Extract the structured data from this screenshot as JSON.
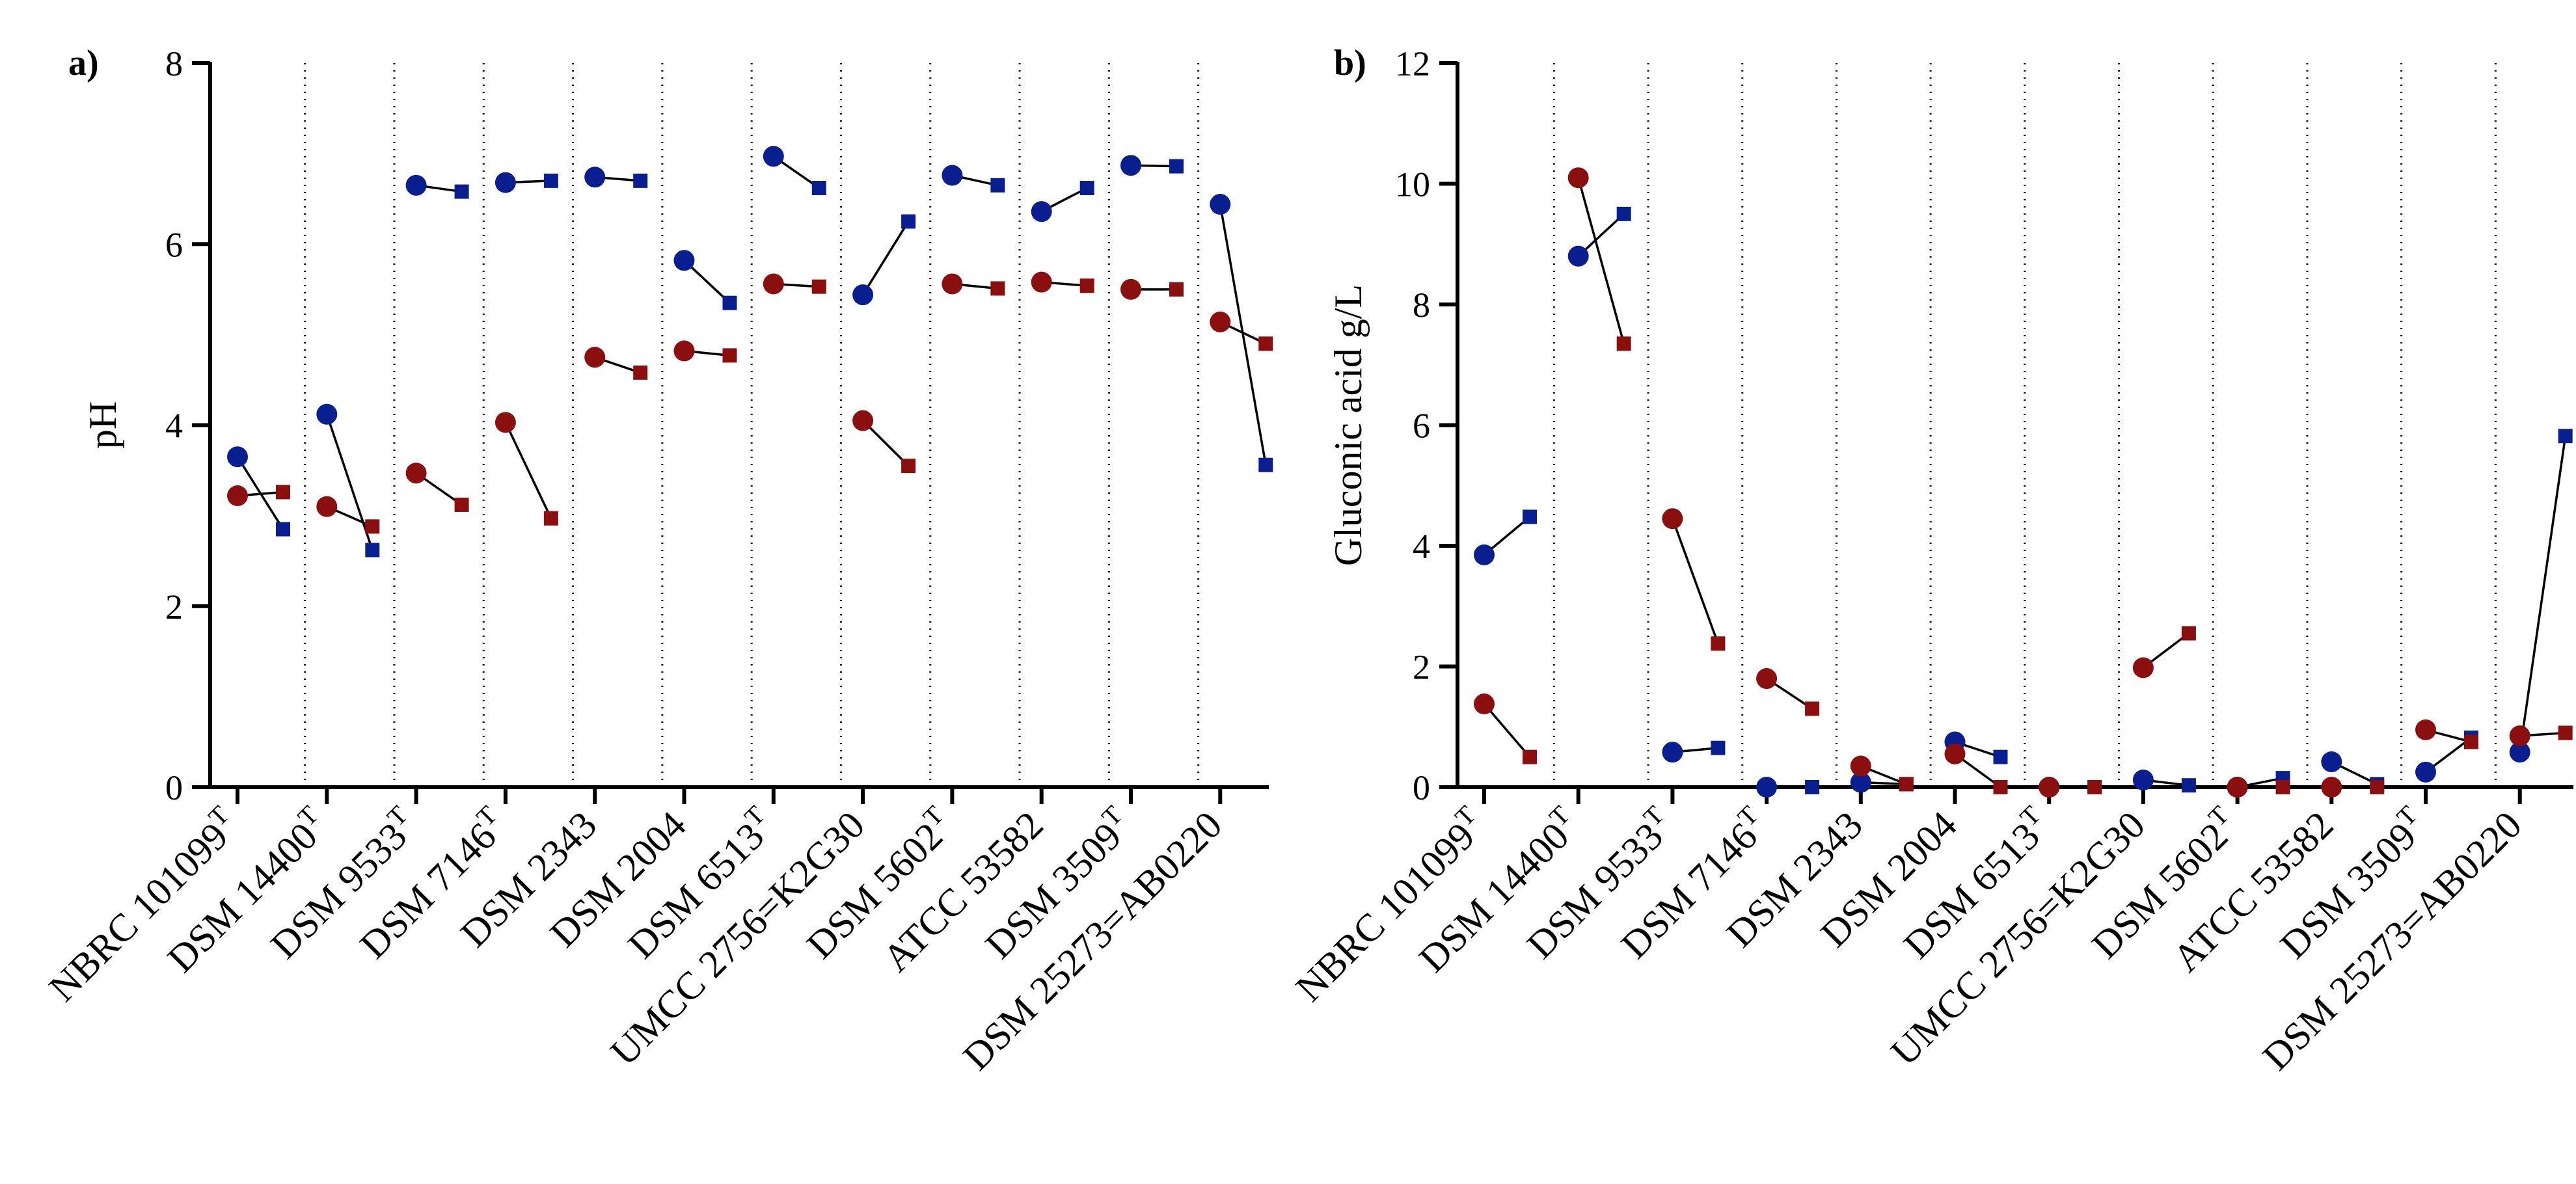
{
  "figure": {
    "panels": [
      {
        "label": "a)",
        "ylabel": "pH",
        "ylim": [
          0,
          8
        ],
        "yticks": [
          0,
          2,
          4,
          6,
          8
        ]
      },
      {
        "label": "b)",
        "ylabel": "Gluconic acid g/L",
        "ylim": [
          0,
          12
        ],
        "yticks": [
          0,
          2,
          4,
          6,
          8,
          10,
          12
        ]
      }
    ]
  },
  "chart_data": [
    {
      "type": "line",
      "title": "a)",
      "xlabel": "",
      "ylabel": "pH",
      "ylim": [
        0,
        8
      ],
      "grid": "vertical dotted separators between strains",
      "categories": [
        {
          "name": "NBRC 101099",
          "sup": "T"
        },
        {
          "name": "DSM 14400",
          "sup": "T"
        },
        {
          "name": "DSM 9533",
          "sup": "T"
        },
        {
          "name": "DSM 7146",
          "sup": "T"
        },
        {
          "name": "DSM 2343",
          "sup": ""
        },
        {
          "name": "DSM 2004",
          "sup": ""
        },
        {
          "name": "DSM 6513",
          "sup": "T"
        },
        {
          "name": "UMCC 2756=K2G30",
          "sup": ""
        },
        {
          "name": "DSM 5602",
          "sup": "T"
        },
        {
          "name": "ATCC 53582",
          "sup": ""
        },
        {
          "name": "DSM 3509",
          "sup": "T"
        },
        {
          "name": "DSM 25273=AB0220",
          "sup": ""
        }
      ],
      "series": [
        {
          "name": "blue",
          "color": "#0a1f8f",
          "start_marker": "circle",
          "end_marker": "square",
          "values": [
            [
              3.65,
              2.85
            ],
            [
              4.12,
              2.62
            ],
            [
              6.65,
              6.58
            ],
            [
              6.68,
              6.7
            ],
            [
              6.74,
              6.7
            ],
            [
              5.82,
              5.35
            ],
            [
              6.97,
              6.62
            ],
            [
              5.44,
              6.25
            ],
            [
              6.76,
              6.65
            ],
            [
              6.36,
              6.62
            ],
            [
              6.87,
              6.86
            ],
            [
              6.44,
              3.56
            ]
          ]
        },
        {
          "name": "red",
          "color": "#8b0f0f",
          "start_marker": "circle",
          "end_marker": "square",
          "values": [
            [
              3.22,
              3.26
            ],
            [
              3.1,
              2.88
            ],
            [
              3.47,
              3.12
            ],
            [
              4.03,
              2.97
            ],
            [
              4.75,
              4.58
            ],
            [
              4.82,
              4.77
            ],
            [
              5.56,
              5.53
            ],
            [
              4.05,
              3.55
            ],
            [
              5.56,
              5.51
            ],
            [
              5.58,
              5.54
            ],
            [
              5.5,
              5.5
            ],
            [
              5.14,
              4.9
            ]
          ]
        }
      ]
    },
    {
      "type": "line",
      "title": "b)",
      "xlabel": "",
      "ylabel": "Gluconic acid g/L",
      "ylim": [
        0,
        12
      ],
      "grid": "vertical dotted separators between strains",
      "categories": [
        {
          "name": "NBRC 101099",
          "sup": "T"
        },
        {
          "name": "DSM 14400",
          "sup": "T"
        },
        {
          "name": "DSM 9533",
          "sup": "T"
        },
        {
          "name": "DSM 7146",
          "sup": "T"
        },
        {
          "name": "DSM 2343",
          "sup": ""
        },
        {
          "name": "DSM 2004",
          "sup": ""
        },
        {
          "name": "DSM 6513",
          "sup": "T"
        },
        {
          "name": "UMCC 2756=K2G30",
          "sup": ""
        },
        {
          "name": "DSM 5602",
          "sup": "T"
        },
        {
          "name": "ATCC 53582",
          "sup": ""
        },
        {
          "name": "DSM 3509",
          "sup": "T"
        },
        {
          "name": "DSM 25273=AB0220",
          "sup": ""
        }
      ],
      "series": [
        {
          "name": "blue",
          "color": "#0a1f8f",
          "start_marker": "circle",
          "end_marker": "square",
          "values": [
            [
              3.85,
              4.48
            ],
            [
              8.8,
              9.5
            ],
            [
              0.58,
              0.65
            ],
            [
              0.0,
              0.0
            ],
            [
              0.08,
              0.05
            ],
            [
              0.75,
              0.5
            ],
            [
              0.0,
              0.0
            ],
            [
              0.12,
              0.03
            ],
            [
              0.0,
              0.15
            ],
            [
              0.42,
              0.05
            ],
            [
              0.25,
              0.82
            ],
            [
              0.58,
              5.82
            ]
          ]
        },
        {
          "name": "red",
          "color": "#8b0f0f",
          "start_marker": "circle",
          "end_marker": "square",
          "values": [
            [
              1.38,
              0.5
            ],
            [
              10.1,
              7.35
            ],
            [
              4.45,
              2.38
            ],
            [
              1.8,
              1.3
            ],
            [
              0.35,
              0.05
            ],
            [
              0.55,
              0.0
            ],
            [
              0.0,
              0.0
            ],
            [
              1.98,
              2.55
            ],
            [
              0.0,
              0.0
            ],
            [
              0.0,
              0.0
            ],
            [
              0.95,
              0.75
            ],
            [
              0.85,
              0.9
            ]
          ]
        }
      ]
    }
  ]
}
